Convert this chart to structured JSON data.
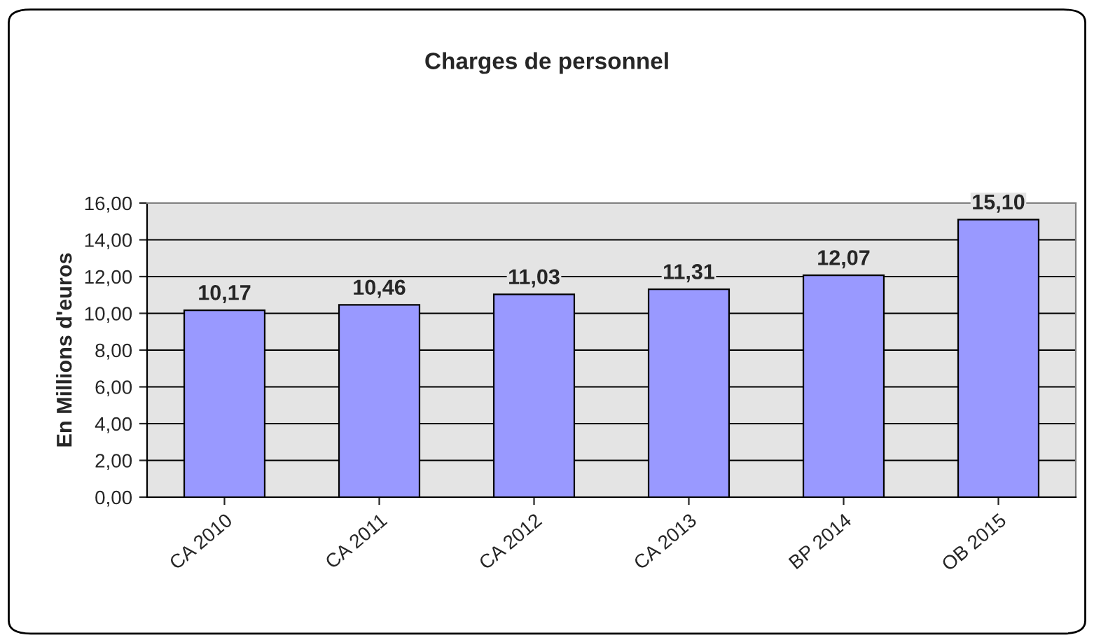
{
  "chart_data": {
    "type": "bar",
    "title": "Charges de personnel",
    "ylabel": "En Millions d'euros",
    "categories": [
      "CA 2010",
      "CA 2011",
      "CA 2012",
      "CA 2013",
      "BP 2014",
      "OB 2015"
    ],
    "values": [
      10.17,
      10.46,
      11.03,
      11.31,
      12.07,
      15.1
    ],
    "value_labels": [
      "10,17",
      "10,46",
      "11,03",
      "11,31",
      "12,07",
      "15,10"
    ],
    "color": "#9999ff",
    "ylim": [
      0,
      16
    ],
    "yticks": [
      {
        "value": 0,
        "label": "0,00"
      },
      {
        "value": 2,
        "label": "2,00"
      },
      {
        "value": 4,
        "label": "4,00"
      },
      {
        "value": 6,
        "label": "6,00"
      },
      {
        "value": 8,
        "label": "8,00"
      },
      {
        "value": 10,
        "label": "10,00"
      },
      {
        "value": 12,
        "label": "12,00"
      },
      {
        "value": 14,
        "label": "14,00"
      },
      {
        "value": 16,
        "label": "16,00"
      }
    ],
    "grid": "y"
  }
}
